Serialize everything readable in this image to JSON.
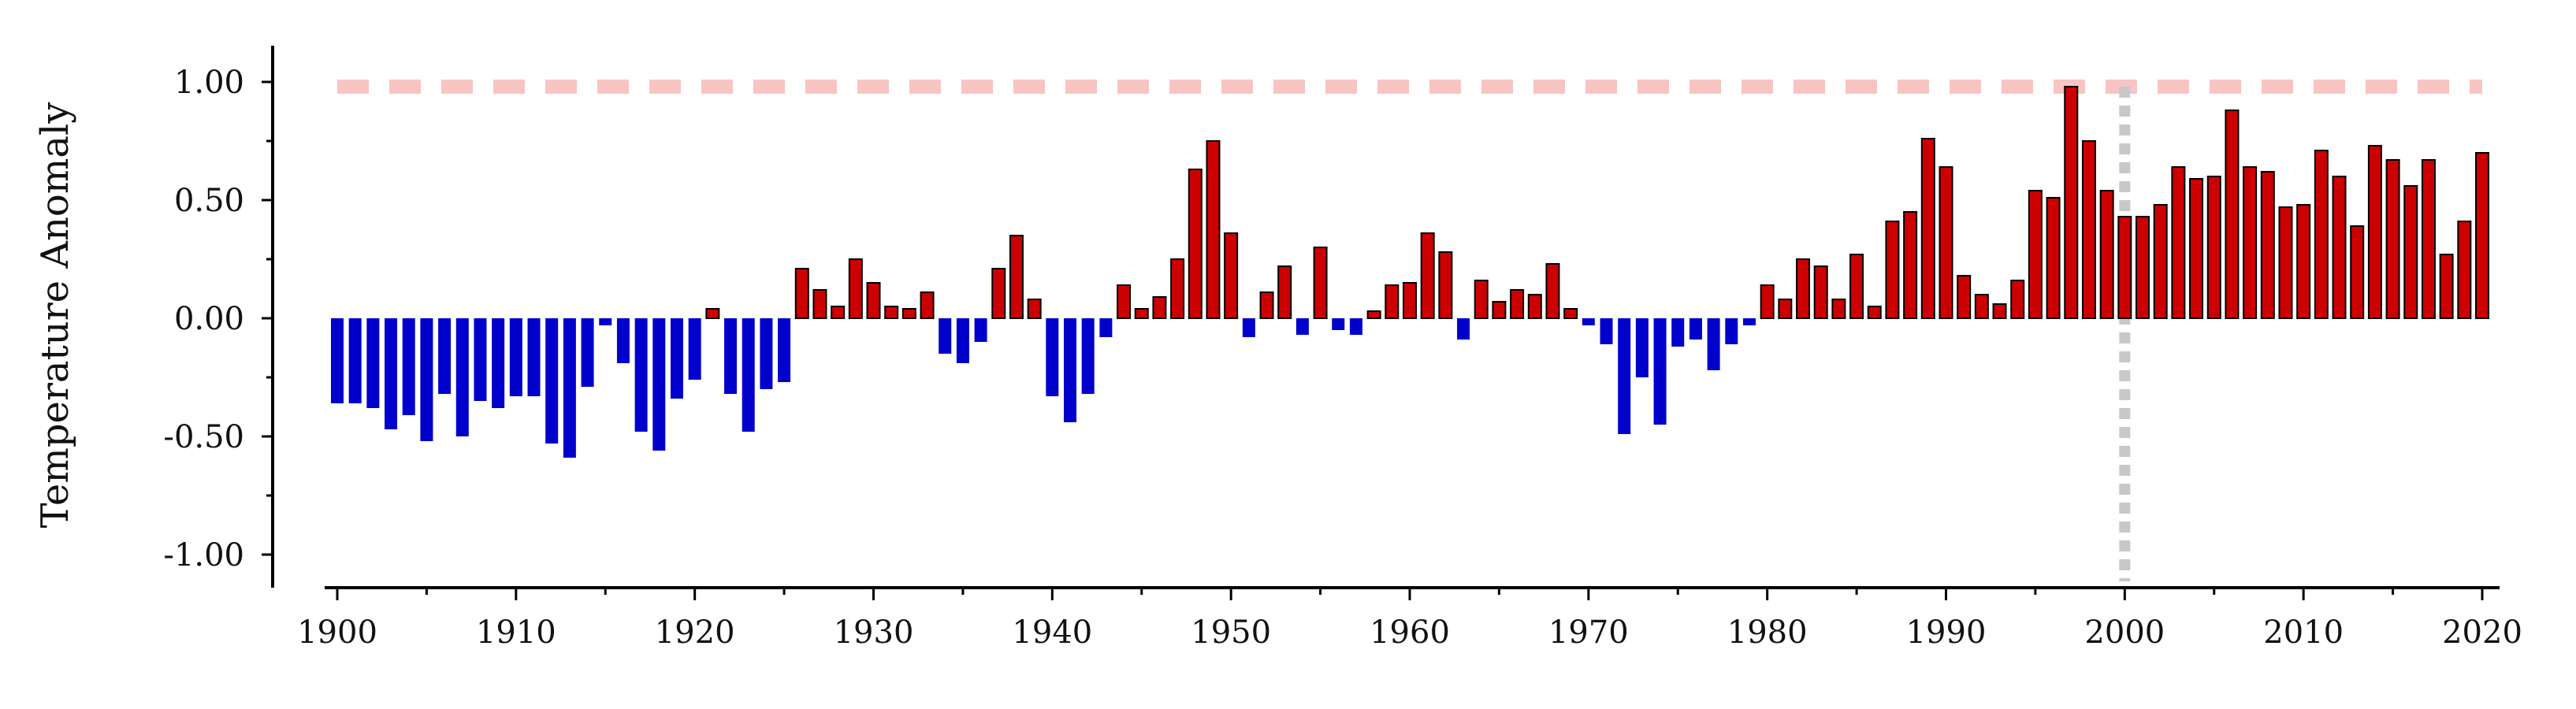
{
  "chart_data": {
    "type": "bar",
    "title": "",
    "xlabel": "",
    "ylabel": "Temperature Anomaly",
    "x": [
      1900,
      1901,
      1902,
      1903,
      1904,
      1905,
      1906,
      1907,
      1908,
      1909,
      1910,
      1911,
      1912,
      1913,
      1914,
      1915,
      1916,
      1917,
      1918,
      1919,
      1920,
      1921,
      1922,
      1923,
      1924,
      1925,
      1926,
      1927,
      1928,
      1929,
      1930,
      1931,
      1932,
      1933,
      1934,
      1935,
      1936,
      1937,
      1938,
      1939,
      1940,
      1941,
      1942,
      1943,
      1944,
      1945,
      1946,
      1947,
      1948,
      1949,
      1950,
      1951,
      1952,
      1953,
      1954,
      1955,
      1956,
      1957,
      1958,
      1959,
      1960,
      1961,
      1962,
      1963,
      1964,
      1965,
      1966,
      1967,
      1968,
      1969,
      1970,
      1971,
      1972,
      1973,
      1974,
      1975,
      1976,
      1977,
      1978,
      1979,
      1980,
      1981,
      1982,
      1983,
      1984,
      1985,
      1986,
      1987,
      1988,
      1989,
      1990,
      1991,
      1992,
      1993,
      1994,
      1995,
      1996,
      1997,
      1998,
      1999,
      2000,
      2001,
      2002,
      2003,
      2004,
      2005,
      2006,
      2007,
      2008,
      2009,
      2010,
      2011,
      2012,
      2013,
      2014,
      2015,
      2016,
      2017,
      2018,
      2019,
      2020
    ],
    "values": [
      -0.36,
      -0.36,
      -0.38,
      -0.47,
      -0.41,
      -0.52,
      -0.32,
      -0.5,
      -0.35,
      -0.38,
      -0.33,
      -0.33,
      -0.53,
      -0.59,
      -0.29,
      -0.03,
      -0.19,
      -0.48,
      -0.56,
      -0.34,
      -0.26,
      0.04,
      -0.32,
      -0.48,
      -0.3,
      -0.27,
      0.21,
      0.12,
      0.05,
      0.25,
      0.15,
      0.05,
      0.04,
      0.11,
      -0.15,
      -0.19,
      -0.1,
      0.21,
      0.35,
      0.08,
      -0.33,
      -0.44,
      -0.32,
      -0.08,
      0.14,
      0.04,
      0.09,
      0.25,
      0.63,
      0.75,
      0.36,
      -0.08,
      0.11,
      0.22,
      -0.07,
      0.3,
      -0.05,
      -0.07,
      0.03,
      0.14,
      0.15,
      0.36,
      0.28,
      -0.09,
      0.16,
      0.07,
      0.12,
      0.1,
      0.23,
      0.04,
      -0.03,
      -0.11,
      -0.49,
      -0.25,
      -0.45,
      -0.12,
      -0.09,
      -0.22,
      -0.11,
      -0.03,
      0.14,
      0.08,
      0.25,
      0.22,
      0.08,
      0.27,
      0.05,
      0.41,
      0.45,
      0.76,
      0.64,
      0.18,
      0.1,
      0.06,
      0.16,
      0.54,
      0.51,
      0.98,
      0.75,
      0.54,
      0.43,
      0.43,
      0.48,
      0.64,
      0.59,
      0.6,
      0.88,
      0.64,
      0.62,
      0.47,
      0.48,
      0.71,
      0.6,
      0.39,
      0.73,
      0.67,
      0.56,
      0.67,
      0.27,
      0.41,
      0.7
    ],
    "xlim": [
      1900,
      2020
    ],
    "ylim": [
      -1.15,
      1.15
    ],
    "x_ticks": [
      "1900",
      "1910",
      "1920",
      "1930",
      "1940",
      "1950",
      "1960",
      "1970",
      "1980",
      "1990",
      "2000",
      "2010",
      "2020"
    ],
    "y_ticks": [
      "-1.00",
      "-0.50",
      "0.00",
      "0.50",
      "1.00"
    ],
    "reference_lines": [
      {
        "orientation": "horizontal",
        "value": 0.98,
        "style": "dashed",
        "color": "#f8c4c4"
      },
      {
        "orientation": "vertical",
        "value": 2000,
        "style": "dotted",
        "color": "#c8c8c8"
      }
    ],
    "colors": {
      "positive": "#cc0000",
      "negative": "#0000cc",
      "outline": "#000000"
    },
    "grid": false,
    "legend": "none"
  }
}
